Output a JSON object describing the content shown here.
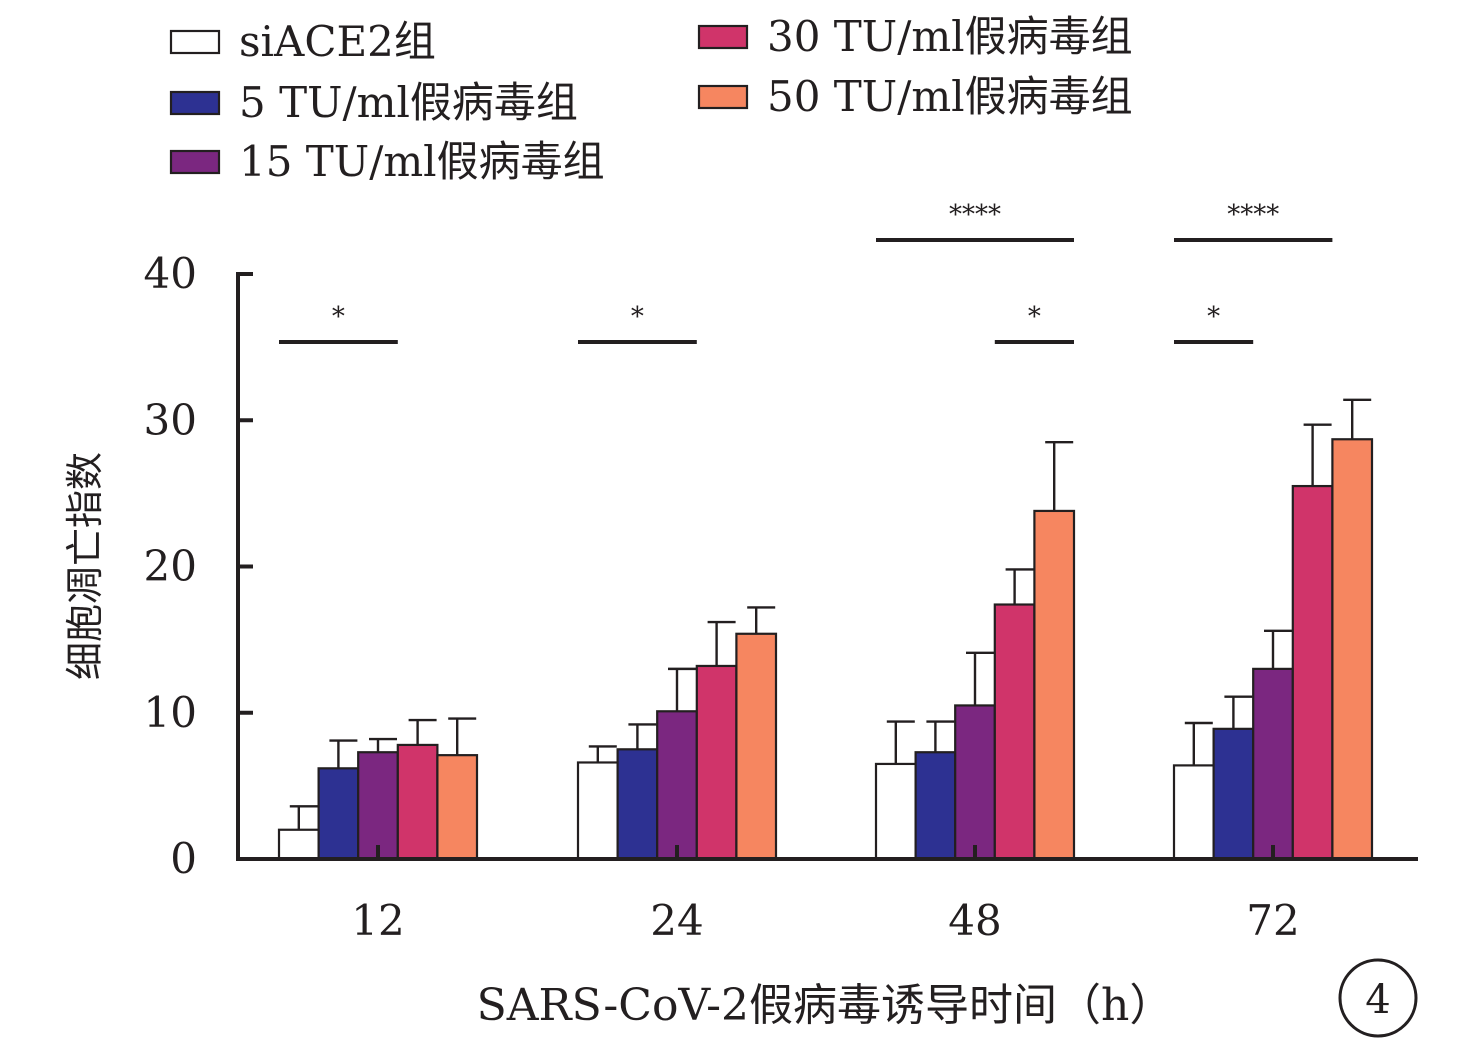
{
  "chart_data": {
    "type": "bar",
    "xlabel": "SARS-CoV-2假病毒诱导时间（h）",
    "ylabel": "细胞凋亡指数",
    "ylim": [
      0,
      40
    ],
    "yticks": [
      0,
      10,
      20,
      30,
      40
    ],
    "categories": [
      "12",
      "24",
      "48",
      "72"
    ],
    "legend_position": "top",
    "panel_label": "4",
    "series": [
      {
        "name": "siACE2组",
        "color": "#ffffff",
        "values": [
          2.0,
          6.6,
          6.5,
          6.4
        ],
        "errors": [
          1.6,
          1.1,
          2.9,
          2.9
        ]
      },
      {
        "name": "5 TU/ml假病毒组",
        "color": "#2d3192",
        "values": [
          6.2,
          7.5,
          7.3,
          8.9
        ],
        "errors": [
          1.9,
          1.7,
          2.1,
          2.2
        ]
      },
      {
        "name": "15 TU/ml假病毒组",
        "color": "#7b2780",
        "values": [
          7.3,
          10.1,
          10.5,
          13.0
        ],
        "errors": [
          0.9,
          2.9,
          3.6,
          2.6
        ]
      },
      {
        "name": "30 TU/ml假病毒组",
        "color": "#d0346a",
        "values": [
          7.8,
          13.2,
          17.4,
          25.5
        ],
        "errors": [
          1.7,
          3.0,
          2.4,
          4.2
        ]
      },
      {
        "name": "50 TU/ml假病毒组",
        "color": "#f68660",
        "values": [
          7.1,
          15.4,
          23.8,
          28.7
        ],
        "errors": [
          2.5,
          1.8,
          4.7,
          2.7
        ]
      }
    ],
    "significance": [
      {
        "category": "12",
        "from_series": 0,
        "to_series": 2,
        "label": "*",
        "level": 0
      },
      {
        "category": "24",
        "from_series": 0,
        "to_series": 2,
        "label": "*",
        "level": 0
      },
      {
        "category": "48",
        "from_series": 3,
        "to_series": 4,
        "label": "*",
        "level": 0
      },
      {
        "category": "48",
        "from_series": 0,
        "to_series": 4,
        "label": "****",
        "level": 1
      },
      {
        "category": "72",
        "from_series": 0,
        "to_series": 1,
        "label": "*",
        "level": 0
      },
      {
        "category": "72",
        "from_series": 0,
        "to_series": 3,
        "label": "****",
        "level": 1
      }
    ]
  }
}
